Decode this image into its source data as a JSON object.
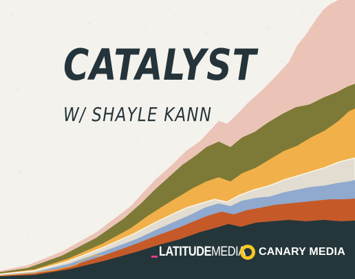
{
  "title": "CATALYST",
  "subtitle": "W/ SHAYLE KANN",
  "logos": {
    "latitude": {
      "word1": "LATITUDE",
      "word2": "MEDIA",
      "accent_color": "#e53a8c"
    },
    "canary": {
      "text": "CANARY MEDIA",
      "icon": "canary-ring-icon",
      "icon_color": "#f6c624"
    }
  },
  "colors": {
    "background": "#f4f2ec",
    "text": "#24343a",
    "layers": [
      "#24363a",
      "#c55a28",
      "#8fa9cf",
      "#e2ddd0",
      "#f2b04a",
      "#7c7a36",
      "#ebc4b7"
    ]
  }
}
